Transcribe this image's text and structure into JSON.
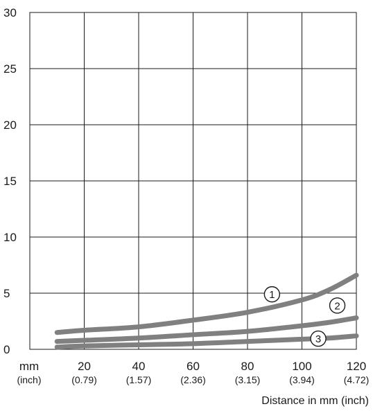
{
  "chart_data": {
    "type": "line",
    "title": "",
    "xlabel": "Distance in mm (inch)",
    "ylabel": "",
    "xlim": [
      0,
      120
    ],
    "ylim": [
      0,
      30
    ],
    "grid": true,
    "x_ticks": [
      {
        "value": 0,
        "label": "mm",
        "sub": "(inch)"
      },
      {
        "value": 20,
        "label": "20",
        "sub": "(0.79)"
      },
      {
        "value": 40,
        "label": "40",
        "sub": "(1.57)"
      },
      {
        "value": 60,
        "label": "60",
        "sub": "(2.36)"
      },
      {
        "value": 80,
        "label": "80",
        "sub": "(3.15)"
      },
      {
        "value": 100,
        "label": "100",
        "sub": "(3.94)"
      },
      {
        "value": 120,
        "label": "120",
        "sub": "(4.72)"
      }
    ],
    "y_ticks": [
      {
        "value": 0,
        "label": "0"
      },
      {
        "value": 5,
        "label": "5"
      },
      {
        "value": 10,
        "label": "10"
      },
      {
        "value": 15,
        "label": "15"
      },
      {
        "value": 20,
        "label": "20"
      },
      {
        "value": 25,
        "label": "25"
      },
      {
        "value": 30,
        "label": "30"
      }
    ],
    "series": [
      {
        "marker": "1",
        "x": [
          10,
          20,
          40,
          60,
          80,
          100,
          110,
          120
        ],
        "values": [
          1.5,
          1.7,
          2.0,
          2.6,
          3.3,
          4.4,
          5.3,
          6.6
        ]
      },
      {
        "marker": "2",
        "x": [
          10,
          20,
          40,
          60,
          80,
          100,
          110,
          120
        ],
        "values": [
          0.7,
          0.8,
          1.0,
          1.3,
          1.6,
          2.1,
          2.4,
          2.8
        ]
      },
      {
        "marker": "3",
        "x": [
          10,
          20,
          40,
          60,
          80,
          100,
          110,
          120
        ],
        "values": [
          0.2,
          0.3,
          0.4,
          0.5,
          0.7,
          0.9,
          1.0,
          1.2
        ]
      }
    ],
    "line_color": "#808080"
  }
}
